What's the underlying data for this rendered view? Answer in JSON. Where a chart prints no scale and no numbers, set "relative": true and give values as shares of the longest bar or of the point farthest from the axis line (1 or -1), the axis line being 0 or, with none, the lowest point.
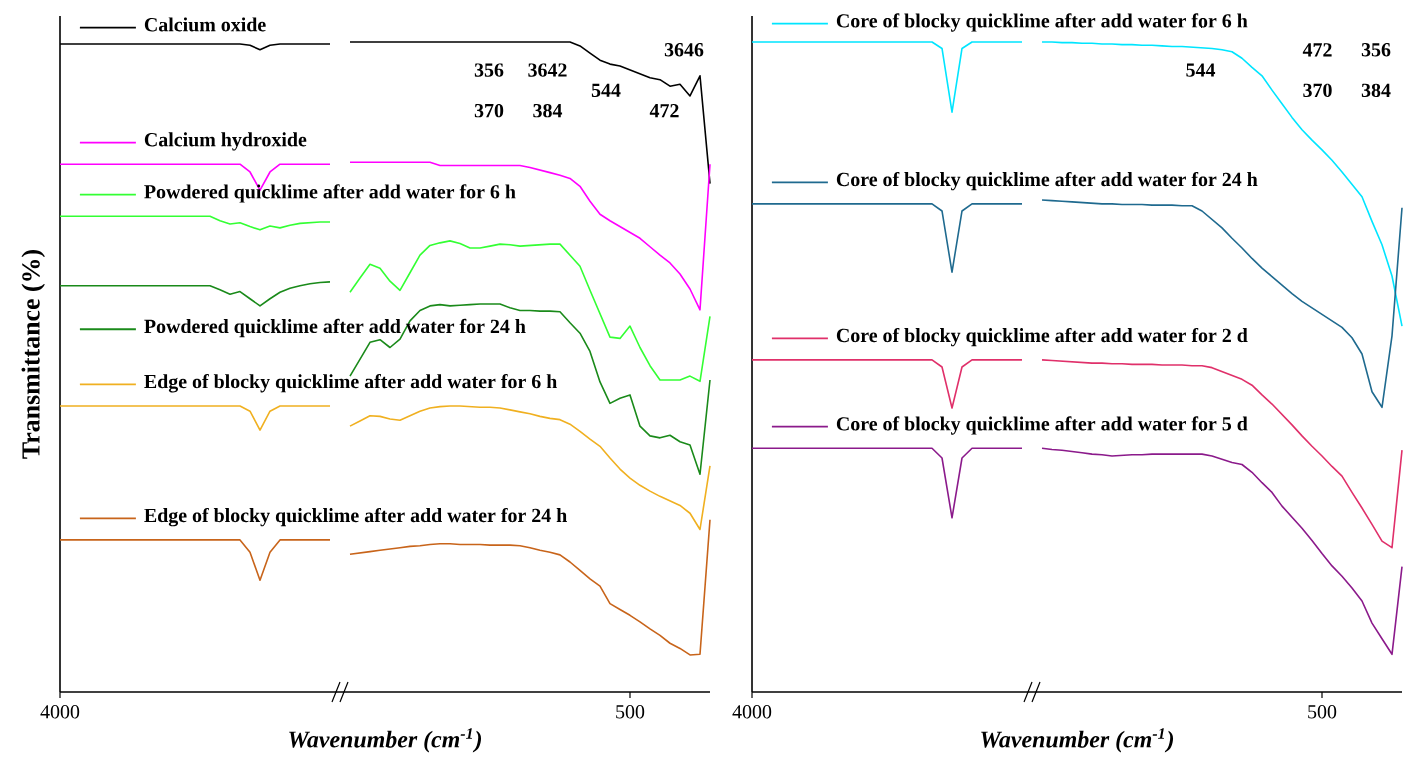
{
  "chart_data": [
    {
      "type": "line",
      "relative": true,
      "ylabel": "Transmittance (%)",
      "xlabel": "Wavenumber (cm$^{-1}$)",
      "categories": [
        "4000",
        null,
        null,
        null,
        null,
        null,
        null,
        null,
        null,
        null,
        null,
        null,
        null,
        null,
        null,
        null,
        null,
        null,
        null,
        null,
        null,
        null,
        null,
        null,
        null,
        null,
        null,
        null,
        null,
        null,
        null,
        null,
        null,
        null,
        null,
        null,
        null,
        null,
        null,
        null,
        null,
        null,
        null,
        null,
        null,
        null,
        null,
        null,
        null,
        null,
        null,
        null,
        null,
        null,
        null,
        null,
        null,
        "500",
        null,
        null,
        null,
        null,
        null,
        null,
        null,
        null
      ],
      "legend": "left",
      "annotations": [
        "3646",
        "3642",
        "356",
        "544",
        "472",
        "384",
        "370"
      ],
      "series": [
        {
          "name": "Calcium oxide",
          "color": "#000000",
          "values": [
            0.997,
            0.997,
            0.997,
            0.997,
            0.997,
            0.997,
            0.997,
            0.997,
            0.997,
            0.997,
            0.997,
            0.997,
            0.997,
            0.997,
            0.997,
            0.997,
            0.997,
            0.997,
            0.997,
            0.995,
            0.988,
            0.995,
            0.997,
            0.997,
            0.997,
            0.997,
            0.997,
            0.997,
            null,
            1.0,
            1.0,
            1.0,
            1.0,
            1.0,
            1.0,
            1.0,
            1.0,
            1.0,
            1.0,
            1.0,
            1.0,
            1.0,
            1.0,
            1.0,
            1.0,
            1.0,
            1.0,
            1.0,
            1.0,
            1.0,
            1.0,
            1.0,
            0.994,
            0.983,
            0.972,
            0.966,
            0.963,
            0.957,
            0.951,
            0.945,
            0.942,
            0.932,
            0.935,
            0.917,
            0.948,
            0.782
          ]
        },
        {
          "name": "Calcium hydroxide",
          "color": "#ff00ff",
          "values": [
            0.812,
            0.812,
            0.812,
            0.812,
            0.812,
            0.812,
            0.812,
            0.812,
            0.812,
            0.812,
            0.812,
            0.812,
            0.812,
            0.812,
            0.812,
            0.812,
            0.812,
            0.812,
            0.812,
            0.8,
            0.772,
            0.8,
            0.812,
            0.812,
            0.812,
            0.812,
            0.812,
            0.812,
            null,
            0.815,
            0.815,
            0.815,
            0.815,
            0.815,
            0.815,
            0.815,
            0.815,
            0.815,
            0.81,
            0.81,
            0.81,
            0.81,
            0.81,
            0.81,
            0.81,
            0.81,
            0.81,
            0.807,
            0.803,
            0.799,
            0.795,
            0.79,
            0.778,
            0.755,
            0.735,
            0.725,
            0.716,
            0.707,
            0.698,
            0.685,
            0.672,
            0.66,
            0.643,
            0.62,
            0.588,
            0.812
          ]
        },
        {
          "name": "Powdered quicklime after add water for 6 h",
          "color": "#33ff33",
          "values": [
            0.732,
            0.732,
            0.732,
            0.732,
            0.732,
            0.732,
            0.732,
            0.732,
            0.732,
            0.732,
            0.732,
            0.732,
            0.732,
            0.732,
            0.732,
            0.732,
            0.725,
            0.72,
            0.722,
            0.716,
            0.711,
            0.717,
            0.714,
            0.718,
            0.721,
            0.722,
            0.723,
            0.723,
            null,
            0.615,
            0.637,
            0.658,
            0.652,
            0.632,
            0.618,
            0.645,
            0.672,
            0.687,
            0.691,
            0.694,
            0.69,
            0.683,
            0.683,
            0.686,
            0.689,
            0.688,
            0.686,
            0.687,
            0.688,
            0.689,
            0.689,
            0.672,
            0.655,
            0.618,
            0.582,
            0.546,
            0.544,
            0.563,
            0.53,
            0.502,
            0.48,
            0.48,
            0.48,
            0.486,
            0.478,
            0.578
          ]
        },
        {
          "name": "Powdered quicklime after add water for 24 h",
          "color": "#1a8a1a",
          "values": [
            0.625,
            0.625,
            0.625,
            0.625,
            0.625,
            0.625,
            0.625,
            0.625,
            0.625,
            0.625,
            0.625,
            0.625,
            0.625,
            0.625,
            0.625,
            0.625,
            0.619,
            0.612,
            0.616,
            0.605,
            0.594,
            0.605,
            0.615,
            0.621,
            0.625,
            0.628,
            0.63,
            0.631,
            null,
            0.486,
            0.512,
            0.538,
            0.542,
            0.53,
            0.543,
            0.571,
            0.587,
            0.594,
            0.596,
            0.594,
            0.595,
            0.596,
            0.597,
            0.597,
            0.597,
            0.591,
            0.587,
            0.587,
            0.586,
            0.586,
            0.585,
            0.568,
            0.552,
            0.524,
            0.477,
            0.444,
            0.452,
            0.457,
            0.409,
            0.394,
            0.391,
            0.395,
            0.385,
            0.38,
            0.335,
            0.48
          ]
        },
        {
          "name": "Edge of blocky quicklime after add water for 6 h",
          "color": "#f0b020",
          "values": [
            0.44,
            0.44,
            0.44,
            0.44,
            0.44,
            0.44,
            0.44,
            0.44,
            0.44,
            0.44,
            0.44,
            0.44,
            0.44,
            0.44,
            0.44,
            0.44,
            0.44,
            0.44,
            0.44,
            0.432,
            0.403,
            0.432,
            0.44,
            0.44,
            0.44,
            0.44,
            0.44,
            0.44,
            null,
            0.409,
            0.417,
            0.425,
            0.424,
            0.42,
            0.418,
            0.425,
            0.432,
            0.437,
            0.439,
            0.44,
            0.44,
            0.439,
            0.438,
            0.438,
            0.437,
            0.434,
            0.431,
            0.428,
            0.424,
            0.421,
            0.419,
            0.412,
            0.401,
            0.389,
            0.378,
            0.36,
            0.343,
            0.329,
            0.318,
            0.309,
            0.301,
            0.294,
            0.287,
            0.275,
            0.25,
            0.348
          ]
        },
        {
          "name": "Edge of blocky quicklime after add water for 24 h",
          "color": "#c8641a",
          "values": [
            0.234,
            0.234,
            0.234,
            0.234,
            0.234,
            0.234,
            0.234,
            0.234,
            0.234,
            0.234,
            0.234,
            0.234,
            0.234,
            0.234,
            0.234,
            0.234,
            0.234,
            0.234,
            0.234,
            0.215,
            0.172,
            0.215,
            0.234,
            0.234,
            0.234,
            0.234,
            0.234,
            0.234,
            null,
            0.212,
            0.214,
            0.216,
            0.218,
            0.22,
            0.222,
            0.224,
            0.225,
            0.227,
            0.228,
            0.228,
            0.227,
            0.227,
            0.227,
            0.226,
            0.226,
            0.226,
            0.225,
            0.222,
            0.218,
            0.215,
            0.211,
            0.2,
            0.187,
            0.174,
            0.163,
            0.136,
            0.127,
            0.118,
            0.108,
            0.097,
            0.087,
            0.075,
            0.067,
            0.057,
            0.058,
            0.265
          ]
        }
      ]
    },
    {
      "type": "line",
      "relative": true,
      "xlabel": "Wavenumber (cm$^{-1}$)",
      "categories": [
        "4000",
        null,
        null,
        null,
        null,
        null,
        null,
        null,
        null,
        null,
        null,
        null,
        null,
        null,
        null,
        null,
        null,
        null,
        null,
        null,
        null,
        null,
        null,
        null,
        null,
        null,
        null,
        null,
        null,
        null,
        null,
        null,
        null,
        null,
        null,
        null,
        null,
        null,
        null,
        null,
        null,
        null,
        null,
        null,
        null,
        null,
        null,
        null,
        null,
        null,
        null,
        null,
        null,
        null,
        null,
        null,
        null,
        "500",
        null,
        null,
        null,
        null,
        null,
        null,
        null,
        null
      ],
      "legend": "left",
      "annotations": [
        "356",
        "472",
        "544",
        "384",
        "370"
      ],
      "series": [
        {
          "name": "Core of blocky quicklime after add water for 6 h",
          "color": "#00e5ff",
          "values": [
            1.0,
            1.0,
            1.0,
            1.0,
            1.0,
            1.0,
            1.0,
            1.0,
            1.0,
            1.0,
            1.0,
            1.0,
            1.0,
            1.0,
            1.0,
            1.0,
            1.0,
            1.0,
            1.0,
            0.99,
            0.892,
            0.99,
            1.0,
            1.0,
            1.0,
            1.0,
            1.0,
            1.0,
            null,
            1.0,
            1.0,
            0.999,
            0.999,
            0.998,
            0.998,
            0.997,
            0.997,
            0.996,
            0.996,
            0.995,
            0.995,
            0.994,
            0.993,
            0.993,
            0.992,
            0.991,
            0.99,
            0.988,
            0.985,
            0.975,
            0.961,
            0.948,
            0.926,
            0.905,
            0.884,
            0.865,
            0.849,
            0.834,
            0.818,
            0.8,
            0.781,
            0.762,
            0.724,
            0.688,
            0.64,
            0.563
          ]
        },
        {
          "name": "Core of blocky quicklime after add water for 24 h",
          "color": "#1f6a8f",
          "values": [
            0.751,
            0.751,
            0.751,
            0.751,
            0.751,
            0.751,
            0.751,
            0.751,
            0.751,
            0.751,
            0.751,
            0.751,
            0.751,
            0.751,
            0.751,
            0.751,
            0.751,
            0.751,
            0.751,
            0.74,
            0.646,
            0.74,
            0.751,
            0.751,
            0.751,
            0.751,
            0.751,
            0.751,
            null,
            0.757,
            0.756,
            0.755,
            0.754,
            0.753,
            0.752,
            0.751,
            0.751,
            0.75,
            0.75,
            0.75,
            0.749,
            0.749,
            0.749,
            0.748,
            0.748,
            0.74,
            0.727,
            0.714,
            0.698,
            0.683,
            0.667,
            0.652,
            0.639,
            0.626,
            0.613,
            0.601,
            0.591,
            0.581,
            0.571,
            0.561,
            0.545,
            0.52,
            0.462,
            0.438,
            0.548,
            0.745
          ]
        },
        {
          "name": "Core of blocky quicklime after add water for 2 d",
          "color": "#e0306a",
          "values": [
            0.511,
            0.511,
            0.511,
            0.511,
            0.511,
            0.511,
            0.511,
            0.511,
            0.511,
            0.511,
            0.511,
            0.511,
            0.511,
            0.511,
            0.511,
            0.511,
            0.511,
            0.511,
            0.511,
            0.5,
            0.437,
            0.5,
            0.511,
            0.511,
            0.511,
            0.511,
            0.511,
            0.511,
            null,
            0.511,
            0.51,
            0.509,
            0.508,
            0.507,
            0.506,
            0.506,
            0.505,
            0.505,
            0.504,
            0.504,
            0.504,
            0.503,
            0.503,
            0.503,
            0.502,
            0.502,
            0.499,
            0.493,
            0.487,
            0.481,
            0.472,
            0.457,
            0.443,
            0.427,
            0.411,
            0.394,
            0.378,
            0.363,
            0.347,
            0.332,
            0.307,
            0.283,
            0.258,
            0.232,
            0.222,
            0.372
          ]
        },
        {
          "name": "Core of blocky quicklime after add water for 5 d",
          "color": "#8b1a8b",
          "values": [
            0.375,
            0.375,
            0.375,
            0.375,
            0.375,
            0.375,
            0.375,
            0.375,
            0.375,
            0.375,
            0.375,
            0.375,
            0.375,
            0.375,
            0.375,
            0.375,
            0.375,
            0.375,
            0.375,
            0.36,
            0.268,
            0.36,
            0.375,
            0.375,
            0.375,
            0.375,
            0.375,
            0.375,
            null,
            0.375,
            0.373,
            0.372,
            0.37,
            0.368,
            0.366,
            0.365,
            0.363,
            0.364,
            0.365,
            0.365,
            0.366,
            0.366,
            0.366,
            0.366,
            0.366,
            0.366,
            0.363,
            0.358,
            0.353,
            0.35,
            0.338,
            0.322,
            0.307,
            0.286,
            0.269,
            0.252,
            0.233,
            0.213,
            0.194,
            0.178,
            0.16,
            0.14,
            0.106,
            0.082,
            0.058,
            0.193
          ]
        }
      ]
    }
  ]
}
